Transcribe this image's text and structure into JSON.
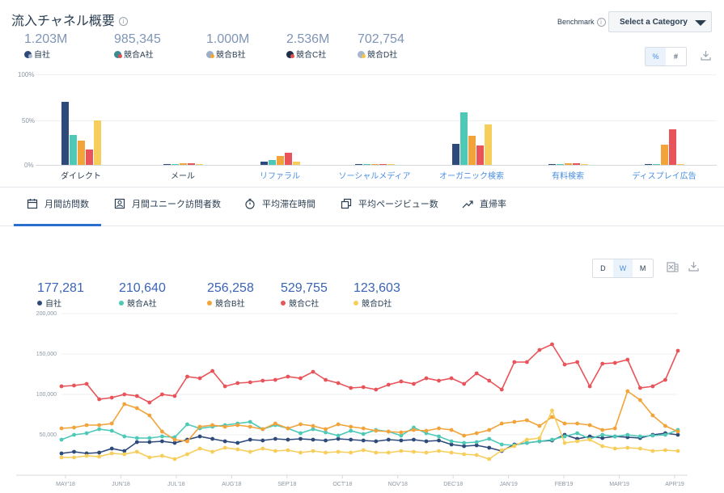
{
  "header": {
    "title": "流入チャネル概要",
    "info": "i"
  },
  "benchmark": {
    "label": "Benchmark",
    "select_value": "Select a Category"
  },
  "summary": [
    {
      "value": "1.203M",
      "label": "自社",
      "color": "#2e4a7a",
      "sub": "#a6b7cf"
    },
    {
      "value": "985,345",
      "label": "競合A社",
      "color": "#3b8a8f",
      "sub": "#e05050"
    },
    {
      "value": "1.000M",
      "label": "競合B社",
      "color": "#9bb0c8",
      "sub": "#f2a33a"
    },
    {
      "value": "2.536M",
      "label": "競合C社",
      "color": "#1f2f4a",
      "sub": "#e05050"
    },
    {
      "value": "702,754",
      "label": "競合D社",
      "color": "#a6b7cf",
      "sub": "#f5c542"
    }
  ],
  "view_toggle": {
    "percent": "%",
    "number": "#"
  },
  "channel_chart": {
    "y_ticks": [
      "100%",
      "50%",
      "0%"
    ],
    "series_colors": [
      "#2e4a7a",
      "#4ec9b7",
      "#f2a33a",
      "#e8545a",
      "#f7cd5b"
    ],
    "categories": [
      {
        "label": "ダイレクト",
        "link": false,
        "values": [
          70,
          33,
          27,
          17,
          49
        ]
      },
      {
        "label": "メール",
        "link": false,
        "values": [
          1,
          1,
          2,
          2,
          1
        ]
      },
      {
        "label": "リファラル",
        "link": true,
        "values": [
          4,
          5,
          10,
          13,
          4
        ]
      },
      {
        "label": "ソーシャルメディア",
        "link": true,
        "values": [
          1,
          1,
          1,
          1,
          1
        ]
      },
      {
        "label": "オーガニック検索",
        "link": true,
        "values": [
          23,
          58,
          32,
          21,
          45
        ]
      },
      {
        "label": "有料検索",
        "link": true,
        "values": [
          1,
          1,
          2,
          2,
          1
        ]
      },
      {
        "label": "ディスプレイ広告",
        "link": true,
        "values": [
          1,
          1,
          22,
          39,
          1
        ]
      }
    ]
  },
  "tabs": [
    {
      "label": "月間訪問数",
      "icon": "calendar-icon"
    },
    {
      "label": "月間ユニーク訪問者数",
      "icon": "person-icon"
    },
    {
      "label": "平均滞在時間",
      "icon": "stopwatch-icon"
    },
    {
      "label": "平均ページビュー数",
      "icon": "pages-icon"
    },
    {
      "label": "直帰率",
      "icon": "trend-icon"
    }
  ],
  "granularity": {
    "d": "D",
    "w": "W",
    "m": "M"
  },
  "line_stats": [
    {
      "value": "177,281",
      "label": "自社",
      "color": "#2e4a7a"
    },
    {
      "value": "210,640",
      "label": "競合A社",
      "color": "#4ec9b7"
    },
    {
      "value": "256,258",
      "label": "競合B社",
      "color": "#f2a33a"
    },
    {
      "value": "529,755",
      "label": "競合C社",
      "color": "#e8545a"
    },
    {
      "value": "123,603",
      "label": "競合D社",
      "color": "#f7cd5b"
    }
  ],
  "chart_data": {
    "type": "line",
    "ylim": [
      0,
      200000
    ],
    "y_ticks": [
      "200,000",
      "150,000",
      "100,000",
      "50,000"
    ],
    "x_ticks": [
      "MAY'18",
      "JUN'18",
      "JUL'18",
      "AUG'18",
      "SEP'18",
      "OCT'18",
      "NOV'18",
      "DEC'18",
      "JAN'19",
      "FEB'19",
      "MAR'19",
      "APR'19"
    ],
    "series": [
      {
        "name": "自社",
        "color": "#2e4a7a",
        "values": [
          27000,
          29000,
          27000,
          28000,
          33000,
          30000,
          41000,
          41000,
          42000,
          40000,
          44000,
          48000,
          45000,
          42000,
          40000,
          44000,
          43000,
          45000,
          44000,
          45000,
          44000,
          43000,
          45000,
          44000,
          43000,
          42000,
          44000,
          43000,
          44000,
          42000,
          43000,
          38000,
          36000,
          37000,
          34000,
          30000,
          38000,
          40000,
          42000,
          43000,
          50000,
          45000,
          48000,
          46000,
          48000,
          47000,
          46000,
          50000,
          52000,
          50000
        ]
      },
      {
        "name": "競合A社",
        "color": "#4ec9b7",
        "values": [
          44000,
          50000,
          52000,
          57000,
          55000,
          48000,
          46000,
          46000,
          48000,
          47000,
          63000,
          58000,
          60000,
          62000,
          64000,
          66000,
          57000,
          62000,
          58000,
          52000,
          57000,
          53000,
          49000,
          55000,
          51000,
          56000,
          54000,
          49000,
          59000,
          52000,
          48000,
          42000,
          40000,
          41000,
          45000,
          38000,
          37000,
          40000,
          42000,
          44000,
          48000,
          52000,
          45000,
          50000,
          48000,
          50000,
          48000,
          49000,
          50000,
          56000
        ]
      },
      {
        "name": "競合B社",
        "color": "#f2a33a",
        "values": [
          58000,
          59000,
          62000,
          62000,
          64000,
          88000,
          83000,
          74000,
          54000,
          44000,
          42000,
          60000,
          62000,
          60000,
          62000,
          60000,
          57000,
          64000,
          58000,
          63000,
          61000,
          57000,
          63000,
          60000,
          58000,
          55000,
          54000,
          53000,
          56000,
          55000,
          58000,
          56000,
          49000,
          52000,
          56000,
          64000,
          66000,
          68000,
          61000,
          72000,
          64000,
          64000,
          62000,
          56000,
          58000,
          104000,
          93000,
          74000,
          61000,
          54000
        ]
      },
      {
        "name": "競合C社",
        "color": "#e8545a",
        "values": [
          110000,
          111000,
          113000,
          94000,
          96000,
          100000,
          98000,
          90000,
          100000,
          98000,
          122000,
          120000,
          129000,
          110000,
          114000,
          115000,
          117000,
          118000,
          122000,
          120000,
          128000,
          118000,
          114000,
          108000,
          109000,
          106000,
          112000,
          116000,
          113000,
          120000,
          117000,
          120000,
          113000,
          126000,
          117000,
          106000,
          140000,
          140000,
          155000,
          162000,
          137000,
          140000,
          110000,
          138000,
          139000,
          143000,
          108000,
          110000,
          118000,
          154000
        ]
      },
      {
        "name": "競合D社",
        "color": "#f7cd5b",
        "values": [
          22000,
          22000,
          24000,
          23000,
          27000,
          26000,
          29000,
          22000,
          24000,
          20000,
          26000,
          33000,
          29000,
          34000,
          32000,
          29000,
          33000,
          30000,
          31000,
          28000,
          30000,
          28000,
          29000,
          28000,
          31000,
          28000,
          28000,
          30000,
          29000,
          28000,
          30000,
          28000,
          26000,
          25000,
          20000,
          31000,
          36000,
          44000,
          46000,
          80000,
          40000,
          42000,
          44000,
          36000,
          33000,
          34000,
          33000,
          30000,
          31000,
          30000
        ]
      }
    ]
  }
}
